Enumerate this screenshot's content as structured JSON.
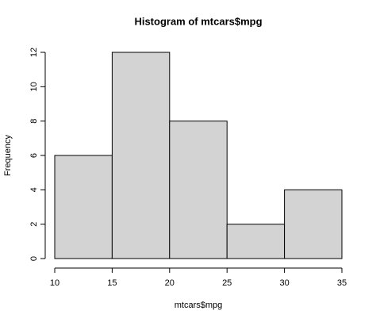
{
  "chart_data": {
    "type": "histogram",
    "title": "Histogram of mtcars$mpg",
    "x_label": "mtcars$mpg",
    "y_label": "Frequency",
    "bins": [
      10,
      15,
      20,
      25,
      30,
      35
    ],
    "values": [
      6,
      12,
      8,
      2,
      4
    ],
    "color": "#d3d3d3",
    "xlim": [
      10,
      35
    ],
    "xticks": [
      10,
      15,
      20,
      25,
      30,
      35
    ],
    "ylim": [
      0,
      12
    ],
    "yticks": [
      0,
      2,
      4,
      6,
      8,
      10,
      12
    ]
  }
}
